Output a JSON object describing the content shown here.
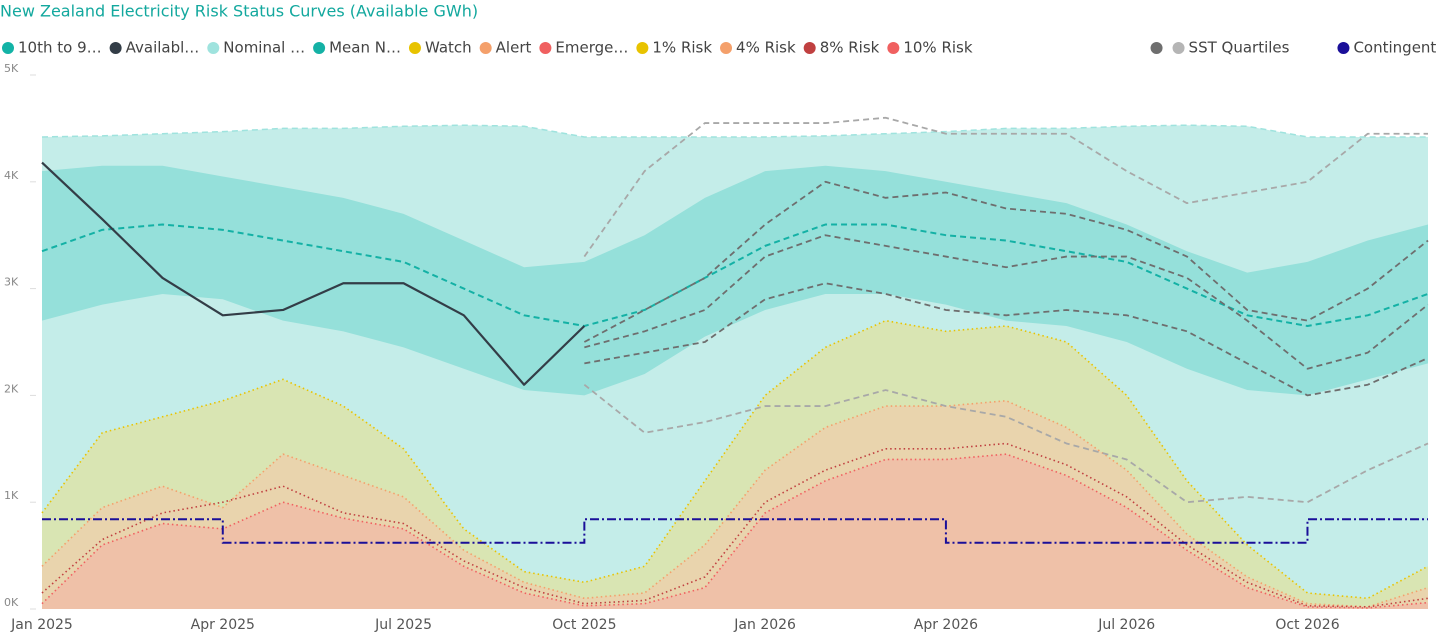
{
  "chart_data": {
    "type": "line",
    "title": "New Zealand Electricity Risk Status Curves (Available GWh)",
    "x": [
      "2025-01",
      "2025-02",
      "2025-03",
      "2025-04",
      "2025-05",
      "2025-06",
      "2025-07",
      "2025-08",
      "2025-09",
      "2025-10",
      "2025-11",
      "2025-12",
      "2026-01",
      "2026-02",
      "2026-03",
      "2026-04",
      "2026-05",
      "2026-06",
      "2026-07",
      "2026-08",
      "2026-09",
      "2026-10",
      "2026-11",
      "2026-12"
    ],
    "xlim": [
      "2025-01",
      "2026-12"
    ],
    "xticks": [
      {
        "value": "2025-01",
        "label": "Jan 2025"
      },
      {
        "value": "2025-04",
        "label": "Apr 2025"
      },
      {
        "value": "2025-07",
        "label": "Jul 2025"
      },
      {
        "value": "2025-10",
        "label": "Oct 2025"
      },
      {
        "value": "2026-01",
        "label": "Jan 2026"
      },
      {
        "value": "2026-04",
        "label": "Apr 2026"
      },
      {
        "value": "2026-07",
        "label": "Jul 2026"
      },
      {
        "value": "2026-10",
        "label": "Oct 2026"
      }
    ],
    "ylim": [
      0,
      5000
    ],
    "yticks": [
      {
        "value": 0,
        "label": "0K"
      },
      {
        "value": 1000,
        "label": "1K"
      },
      {
        "value": 2000,
        "label": "2K"
      },
      {
        "value": 3000,
        "label": "3K"
      },
      {
        "value": 4000,
        "label": "4K"
      },
      {
        "value": 5000,
        "label": "5K"
      }
    ],
    "series": [
      {
        "name": "10th to 9…",
        "kind": "band",
        "color": "#13b3a6",
        "fill": "#95e0da",
        "values": [
          4100,
          4150,
          4150,
          4050,
          3950,
          3850,
          3700,
          3450,
          3200,
          3250,
          3500,
          3850,
          4100,
          4150,
          4100,
          4000,
          3900,
          3800,
          3600,
          3350,
          3150,
          3250,
          3450,
          3600
        ],
        "base": [
          2700,
          2850,
          2950,
          2900,
          2700,
          2600,
          2450,
          2250,
          2050,
          2000,
          2200,
          2550,
          2800,
          2950,
          2950,
          2850,
          2700,
          2650,
          2500,
          2250,
          2050,
          2000,
          2150,
          2300
        ]
      },
      {
        "name": "Availabl…",
        "kind": "line",
        "dash": "solid",
        "color": "#333d47",
        "values": [
          4180,
          3650,
          3100,
          2750,
          2800,
          3050,
          3050,
          2750,
          2100,
          2650,
          null,
          null,
          null,
          null,
          null,
          null,
          null,
          null,
          null,
          null,
          null,
          null,
          null,
          null
        ]
      },
      {
        "name": "Nominal …",
        "kind": "background",
        "dash": "dashed",
        "color": "#9fe3de",
        "fill": "#c4ede9",
        "values": [
          4420,
          4430,
          4450,
          4470,
          4500,
          4500,
          4520,
          4530,
          4520,
          4420,
          4420,
          4420,
          4420,
          4430,
          4450,
          4470,
          4500,
          4500,
          4520,
          4530,
          4520,
          4420,
          4420,
          4420
        ]
      },
      {
        "name": "Mean N…",
        "kind": "line",
        "dash": "dashed",
        "color": "#14b1a5",
        "values": [
          3350,
          3550,
          3600,
          3550,
          3450,
          3350,
          3250,
          3000,
          2750,
          2650,
          2800,
          3100,
          3400,
          3600,
          3600,
          3500,
          3450,
          3350,
          3250,
          3000,
          2750,
          2650,
          2750,
          2950
        ]
      },
      {
        "name": "Watch",
        "kind": "area",
        "color": "#e8c300",
        "fill": "#d9e5b3",
        "values": [
          900,
          1650,
          1800,
          1950,
          2150,
          1900,
          1500,
          750,
          350,
          250,
          400,
          1200,
          2000,
          2450,
          2700,
          2600,
          2650,
          2500,
          2000,
          1200,
          600,
          150,
          100,
          400
        ]
      },
      {
        "name": "Alert",
        "kind": "area",
        "color": "#f4a06b",
        "fill": "#e9d4ad",
        "values": [
          400,
          950,
          1150,
          950,
          1450,
          1250,
          1050,
          550,
          250,
          100,
          150,
          600,
          1300,
          1700,
          1900,
          1900,
          1950,
          1700,
          1300,
          700,
          300,
          50,
          20,
          200
        ]
      },
      {
        "name": "Emerge…",
        "kind": "area",
        "color": "#f06060",
        "fill": "#efc1a8",
        "values": [
          50,
          600,
          800,
          750,
          1000,
          850,
          750,
          400,
          150,
          30,
          50,
          200,
          900,
          1200,
          1400,
          1400,
          1450,
          1250,
          950,
          550,
          200,
          20,
          10,
          60
        ]
      },
      {
        "name": "1% Risk",
        "kind": "line",
        "dash": "dotted",
        "color": "#e8c300",
        "values": [
          900,
          1650,
          1800,
          1950,
          2150,
          1900,
          1500,
          750,
          350,
          250,
          400,
          1200,
          2000,
          2450,
          2700,
          2600,
          2650,
          2500,
          2000,
          1200,
          600,
          150,
          100,
          400
        ]
      },
      {
        "name": "4% Risk",
        "kind": "line",
        "dash": "dotted",
        "color": "#f4a06b",
        "values": [
          400,
          950,
          1150,
          950,
          1450,
          1250,
          1050,
          550,
          250,
          100,
          150,
          600,
          1300,
          1700,
          1900,
          1900,
          1950,
          1700,
          1300,
          700,
          300,
          50,
          20,
          200
        ]
      },
      {
        "name": "8% Risk",
        "kind": "line",
        "dash": "dotted",
        "color": "#c04040",
        "values": [
          150,
          650,
          900,
          1000,
          1150,
          900,
          800,
          450,
          200,
          50,
          80,
          300,
          1000,
          1300,
          1500,
          1500,
          1550,
          1350,
          1050,
          600,
          250,
          30,
          20,
          100
        ]
      },
      {
        "name": "10% Risk",
        "kind": "line",
        "dash": "dotted",
        "color": "#f06060",
        "values": [
          50,
          600,
          800,
          750,
          1000,
          850,
          750,
          400,
          150,
          30,
          50,
          200,
          900,
          1200,
          1400,
          1400,
          1450,
          1250,
          950,
          550,
          200,
          20,
          10,
          60
        ]
      }
    ],
    "sst": {
      "name": "SST Quartiles",
      "colors": [
        "#6e6e6e",
        "#b5b5b5"
      ],
      "series": [
        {
          "color": "#a8a8a8",
          "values": [
            null,
            null,
            null,
            null,
            null,
            null,
            null,
            null,
            null,
            3300,
            4100,
            4550,
            4550,
            4550,
            4600,
            4450,
            4450,
            4450,
            4100,
            3800,
            3900,
            4000,
            4450,
            4450
          ]
        },
        {
          "color": "#6e6e6e",
          "values": [
            null,
            null,
            null,
            null,
            null,
            null,
            null,
            null,
            null,
            2500,
            2800,
            3100,
            3600,
            4000,
            3850,
            3900,
            3750,
            3700,
            3550,
            3300,
            2800,
            2700,
            3000,
            3450
          ]
        },
        {
          "color": "#6e6e6e",
          "values": [
            null,
            null,
            null,
            null,
            null,
            null,
            null,
            null,
            null,
            2450,
            2600,
            2800,
            3300,
            3500,
            3400,
            3300,
            3200,
            3300,
            3300,
            3100,
            2700,
            2250,
            2400,
            2850
          ]
        },
        {
          "color": "#6e6e6e",
          "values": [
            null,
            null,
            null,
            null,
            null,
            null,
            null,
            null,
            null,
            2300,
            2400,
            2500,
            2900,
            3050,
            2950,
            2800,
            2750,
            2800,
            2750,
            2600,
            2300,
            2000,
            2100,
            2350
          ]
        },
        {
          "color": "#a8a8a8",
          "values": [
            null,
            null,
            null,
            null,
            null,
            null,
            null,
            null,
            null,
            2100,
            1650,
            1750,
            1900,
            1900,
            2050,
            1900,
            1800,
            1550,
            1400,
            1000,
            1050,
            1000,
            1300,
            1550
          ]
        }
      ]
    },
    "contingent": {
      "name": "Contingent",
      "color": "#1a0f99",
      "values": [
        840,
        840,
        840,
        620,
        620,
        620,
        620,
        620,
        620,
        840,
        840,
        840,
        840,
        840,
        840,
        620,
        620,
        620,
        620,
        620,
        620,
        840,
        840,
        840
      ]
    }
  }
}
